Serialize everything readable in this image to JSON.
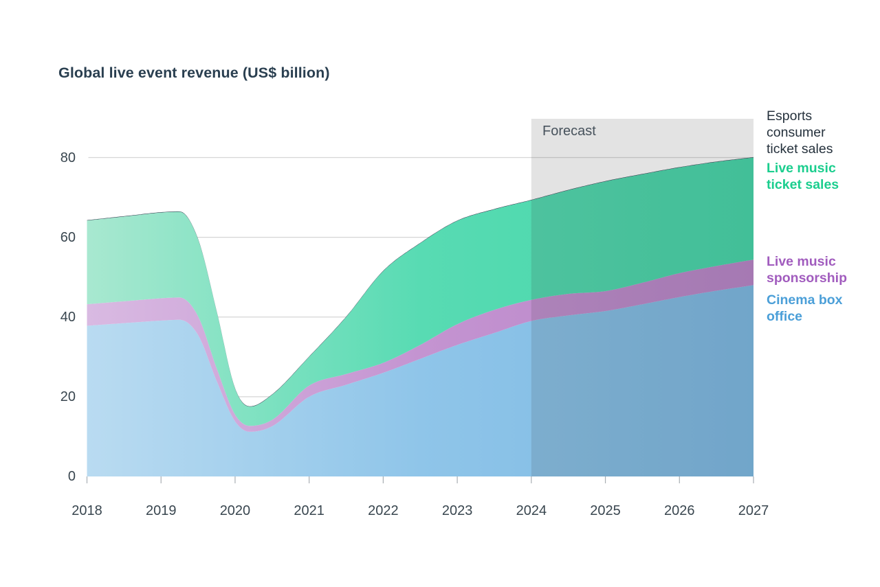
{
  "title": "Global live event revenue (US$ billion)",
  "forecast_label": "Forecast",
  "legend": [
    {
      "label": "Esports consumer ticket sales",
      "color": "#25313C",
      "bold": false
    },
    {
      "label": "Live music ticket sales",
      "color": "#1BCE8E",
      "bold": true
    },
    {
      "label": "Live music sponsorship",
      "color": "#A15CBE",
      "bold": true
    },
    {
      "label": "Cinema box office",
      "color": "#4B9FD8",
      "bold": true
    }
  ],
  "chart_data": {
    "type": "area",
    "stacked": true,
    "title": "Global live event revenue (US$ billion)",
    "xlabel": "",
    "ylabel": "US$ billion",
    "x_ticks": [
      2018,
      2019,
      2020,
      2021,
      2022,
      2023,
      2024,
      2025,
      2026,
      2027
    ],
    "y_ticks": [
      0,
      20,
      40,
      60,
      80
    ],
    "y_gridlines": [
      20,
      40,
      60,
      80
    ],
    "ylim": [
      0,
      80
    ],
    "grid": "horizontal",
    "legend_position": "right",
    "forecast_start": 2024,
    "x": [
      2018,
      2018.6,
      2019,
      2019.25,
      2019.5,
      2019.75,
      2020,
      2020.2,
      2020.5,
      2021,
      2021.5,
      2022,
      2022.5,
      2023,
      2023.5,
      2024,
      2024.5,
      2025,
      2025.5,
      2026,
      2026.5,
      2027
    ],
    "series": [
      {
        "name": "Cinema box office",
        "values": [
          37.8,
          38.6,
          39.1,
          39.3,
          35.5,
          24.0,
          13.8,
          11.2,
          12.6,
          20.0,
          23.0,
          26.0,
          29.5,
          33.0,
          36.0,
          39.0,
          40.4,
          41.5,
          43.2,
          45.0,
          46.6,
          48.0
        ],
        "gradient": [
          "#B9DBF1",
          "#8FC5E9",
          "#7BB8E2"
        ]
      },
      {
        "name": "Live music sponsorship",
        "values": [
          5.4,
          5.5,
          5.6,
          5.6,
          4.7,
          3.2,
          1.7,
          1.5,
          1.6,
          2.8,
          2.7,
          2.5,
          3.5,
          5.2,
          5.8,
          5.3,
          5.4,
          5.0,
          5.4,
          6.0,
          6.2,
          6.4
        ],
        "gradient": [
          "#D9BAE2",
          "#C494D1",
          "#B884C8"
        ]
      },
      {
        "name": "Live music ticket sales",
        "values": [
          21.0,
          21.3,
          21.5,
          21.5,
          19.3,
          14.3,
          6.5,
          4.8,
          6.3,
          7.2,
          14.3,
          23.0,
          25.5,
          25.9,
          25.2,
          25.0,
          26.0,
          27.5,
          27.2,
          26.5,
          26.1,
          25.6
        ],
        "gradient": [
          "#A8E8D0",
          "#58DBB3",
          "#44D6A8"
        ]
      },
      {
        "name": "Esports consumer ticket sales",
        "values": [
          0.1,
          0.1,
          0.1,
          0.1,
          0.1,
          0.1,
          0.1,
          0.1,
          0.1,
          0.1,
          0.1,
          0.1,
          0.1,
          0.1,
          0.1,
          0.1,
          0.1,
          0.1,
          0.1,
          0.1,
          0.1,
          0.1
        ],
        "gradient": [
          "#2B3E4C"
        ]
      }
    ],
    "annotations": [
      "Forecast"
    ]
  },
  "colors": {
    "title": "#2A3F50",
    "axis_labels": "#39464F",
    "gridline": "#D5D5D5",
    "tick": "#A8AEB3",
    "forecast_overlay": "rgba(60,60,60,0.14)",
    "forecast_text": "#47525C",
    "background": "#FFFFFF"
  }
}
